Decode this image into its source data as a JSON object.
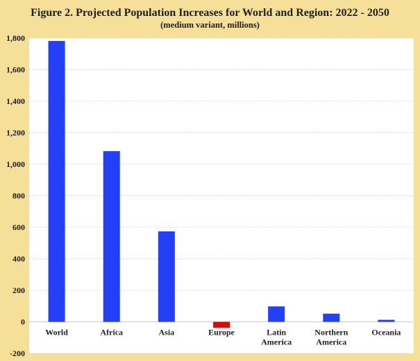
{
  "chart_data": {
    "type": "bar",
    "title": "Figure 2. Projected Population Increases for World and Region: 2022 - 2050",
    "subtitle": "(medium variant, millions)",
    "xlabel": "",
    "ylabel": "",
    "ylim": [
      -200,
      1800
    ],
    "yticks": [
      -200,
      0,
      200,
      400,
      600,
      800,
      1000,
      1200,
      1400,
      1600,
      1800
    ],
    "ytick_labels": [
      "-200",
      "0",
      "200",
      "400",
      "600",
      "800",
      "1,000",
      "1,200",
      "1,400",
      "1,600",
      "1,800"
    ],
    "grid": true,
    "categories": [
      [
        "World"
      ],
      [
        "Africa"
      ],
      [
        "Asia"
      ],
      [
        "Europe"
      ],
      [
        "Latin",
        "America"
      ],
      [
        "Northern",
        "America"
      ],
      [
        "Oceania"
      ]
    ],
    "values": [
      1782,
      1083,
      574,
      -37,
      98,
      52,
      13
    ],
    "colors": {
      "positive": "#2340f5",
      "negative": "#dd0a0a",
      "plot_background": "#ffffff",
      "page_background": "#f5df99",
      "gridline": "#d8d8d8",
      "axis": "#c9c9c9"
    }
  }
}
